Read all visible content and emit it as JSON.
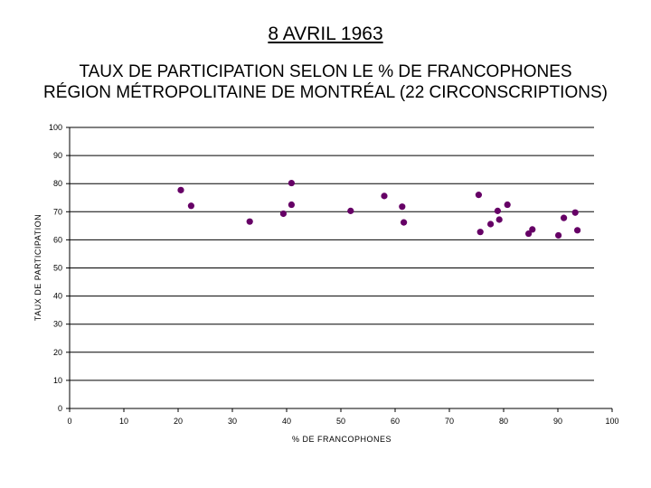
{
  "header": {
    "title": "8 AVRIL 1963"
  },
  "chart_data": {
    "type": "scatter",
    "title_lines": [
      "TAUX DE PARTICIPATION SELON LE % DE FRANCOPHONES",
      "RÉGION MÉTROPOLITAINE DE MONTRÉAL (22 CIRCONSCRIPTIONS)"
    ],
    "xlabel": "% DE FRANCOPHONES",
    "ylabel": "TAUX DE PARTICIPATION",
    "xlim": [
      0,
      100
    ],
    "ylim": [
      0,
      100
    ],
    "x_ticks": [
      0,
      10,
      20,
      30,
      40,
      50,
      60,
      70,
      80,
      90,
      100
    ],
    "y_ticks": [
      0,
      10,
      20,
      30,
      40,
      50,
      60,
      70,
      80,
      90,
      100
    ],
    "grid": "horizontal",
    "marker_color": "#660066",
    "points": [
      {
        "x": 20.5,
        "y": 77.7
      },
      {
        "x": 22.4,
        "y": 72.1
      },
      {
        "x": 33.2,
        "y": 66.5
      },
      {
        "x": 39.4,
        "y": 69.3
      },
      {
        "x": 40.9,
        "y": 80.2
      },
      {
        "x": 40.9,
        "y": 72.5
      },
      {
        "x": 51.8,
        "y": 70.3
      },
      {
        "x": 58.0,
        "y": 75.6
      },
      {
        "x": 61.3,
        "y": 71.8
      },
      {
        "x": 61.6,
        "y": 66.2
      },
      {
        "x": 75.4,
        "y": 76.0
      },
      {
        "x": 75.7,
        "y": 62.8
      },
      {
        "x": 77.6,
        "y": 65.6
      },
      {
        "x": 78.9,
        "y": 70.3
      },
      {
        "x": 79.2,
        "y": 67.2
      },
      {
        "x": 80.7,
        "y": 72.5
      },
      {
        "x": 84.6,
        "y": 62.2
      },
      {
        "x": 85.3,
        "y": 63.7
      },
      {
        "x": 90.1,
        "y": 61.6
      },
      {
        "x": 91.1,
        "y": 67.8
      },
      {
        "x": 93.2,
        "y": 69.7
      },
      {
        "x": 93.6,
        "y": 63.4
      }
    ]
  }
}
